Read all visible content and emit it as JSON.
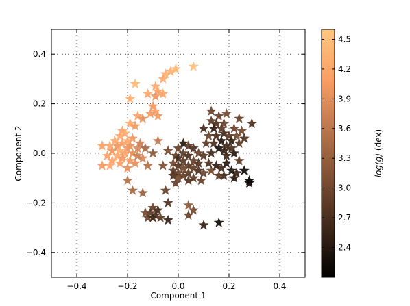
{
  "chart_data": {
    "type": "scatter",
    "title": "",
    "xlabel": "Component 1",
    "ylabel": "Component 2",
    "xlim": [
      -0.5,
      0.5
    ],
    "ylim": [
      -0.5,
      0.5
    ],
    "xticks": [
      "−0.4",
      "−0.2",
      "0.0",
      "0.2",
      "0.4"
    ],
    "xtick_values": [
      -0.4,
      -0.2,
      0.0,
      0.2,
      0.4
    ],
    "yticks": [
      "0.4",
      "0.2",
      "0.0",
      "−0.2",
      "−0.4"
    ],
    "ytick_values": [
      0.4,
      0.2,
      0.0,
      -0.2,
      -0.4
    ],
    "grid": true,
    "grid_style": "dotted",
    "marker": "star",
    "colorbar": {
      "colormap": "copper",
      "label_math": "log(g)",
      "label_text": " (dex)",
      "range": [
        2.1,
        4.6
      ],
      "ticks": [
        "4.5",
        "4.2",
        "3.9",
        "3.6",
        "3.3",
        "3.0",
        "2.7",
        "2.4"
      ],
      "tick_values": [
        4.5,
        4.2,
        3.9,
        3.6,
        3.3,
        3.0,
        2.7,
        2.4
      ]
    },
    "points": [
      {
        "x": 0.06,
        "y": 0.35,
        "c": 4.5
      },
      {
        "x": -0.01,
        "y": 0.34,
        "c": 4.4
      },
      {
        "x": -0.03,
        "y": 0.33,
        "c": 4.3
      },
      {
        "x": -0.05,
        "y": 0.32,
        "c": 4.3
      },
      {
        "x": -0.06,
        "y": 0.3,
        "c": 4.2
      },
      {
        "x": -0.17,
        "y": 0.28,
        "c": 4.4
      },
      {
        "x": -0.09,
        "y": 0.27,
        "c": 4.2
      },
      {
        "x": -0.08,
        "y": 0.25,
        "c": 4.1
      },
      {
        "x": -0.06,
        "y": 0.24,
        "c": 4.1
      },
      {
        "x": -0.12,
        "y": 0.24,
        "c": 4.2
      },
      {
        "x": -0.09,
        "y": 0.23,
        "c": 4.0
      },
      {
        "x": -0.19,
        "y": 0.22,
        "c": 4.3
      },
      {
        "x": -0.1,
        "y": 0.19,
        "c": 4.0
      },
      {
        "x": -0.09,
        "y": 0.17,
        "c": 4.1
      },
      {
        "x": -0.11,
        "y": 0.16,
        "c": 4.0
      },
      {
        "x": -0.16,
        "y": 0.15,
        "c": 4.1
      },
      {
        "x": -0.14,
        "y": 0.14,
        "c": 3.9
      },
      {
        "x": -0.08,
        "y": 0.15,
        "c": 4.0
      },
      {
        "x": -0.19,
        "y": 0.12,
        "c": 4.2
      },
      {
        "x": -0.17,
        "y": 0.11,
        "c": 4.0
      },
      {
        "x": -0.22,
        "y": 0.09,
        "c": 4.1
      },
      {
        "x": -0.21,
        "y": 0.08,
        "c": 4.3
      },
      {
        "x": -0.23,
        "y": 0.07,
        "c": 4.2
      },
      {
        "x": -0.18,
        "y": 0.06,
        "c": 4.0
      },
      {
        "x": -0.25,
        "y": 0.05,
        "c": 4.2
      },
      {
        "x": -0.2,
        "y": 0.05,
        "c": 4.2
      },
      {
        "x": -0.22,
        "y": 0.04,
        "c": 4.1
      },
      {
        "x": -0.24,
        "y": 0.03,
        "c": 4.0
      },
      {
        "x": -0.27,
        "y": 0.03,
        "c": 4.2
      },
      {
        "x": -0.3,
        "y": 0.03,
        "c": 4.1
      },
      {
        "x": -0.19,
        "y": 0.03,
        "c": 3.9
      },
      {
        "x": -0.15,
        "y": 0.04,
        "c": 3.7
      },
      {
        "x": -0.2,
        "y": 0.02,
        "c": 4.0
      },
      {
        "x": -0.23,
        "y": 0.01,
        "c": 4.3
      },
      {
        "x": -0.26,
        "y": 0.01,
        "c": 4.0
      },
      {
        "x": -0.16,
        "y": 0.02,
        "c": 3.8
      },
      {
        "x": -0.21,
        "y": 0.0,
        "c": 4.1
      },
      {
        "x": -0.18,
        "y": 0.0,
        "c": 3.9
      },
      {
        "x": -0.28,
        "y": -0.01,
        "c": 4.1
      },
      {
        "x": -0.24,
        "y": -0.01,
        "c": 4.2
      },
      {
        "x": -0.14,
        "y": -0.02,
        "c": 3.8
      },
      {
        "x": -0.22,
        "y": -0.02,
        "c": 4.0
      },
      {
        "x": -0.26,
        "y": -0.03,
        "c": 4.1
      },
      {
        "x": -0.19,
        "y": -0.03,
        "c": 4.0
      },
      {
        "x": -0.17,
        "y": -0.04,
        "c": 3.9
      },
      {
        "x": -0.23,
        "y": -0.04,
        "c": 4.1
      },
      {
        "x": -0.3,
        "y": -0.05,
        "c": 4.0
      },
      {
        "x": -0.27,
        "y": -0.05,
        "c": 4.2
      },
      {
        "x": -0.2,
        "y": -0.06,
        "c": 3.9
      },
      {
        "x": -0.08,
        "y": 0.05,
        "c": 3.6
      },
      {
        "x": -0.2,
        "y": -0.11,
        "c": 3.5
      },
      {
        "x": -0.18,
        "y": -0.15,
        "c": 3.4
      },
      {
        "x": -0.14,
        "y": -0.16,
        "c": 3.3
      },
      {
        "x": -0.05,
        "y": -0.15,
        "c": 2.9
      },
      {
        "x": -0.04,
        "y": -0.2,
        "c": 2.7
      },
      {
        "x": -0.1,
        "y": -0.22,
        "c": 2.9
      },
      {
        "x": -0.08,
        "y": -0.23,
        "c": 2.6
      },
      {
        "x": -0.11,
        "y": -0.24,
        "c": 2.8
      },
      {
        "x": -0.13,
        "y": -0.24,
        "c": 3.0
      },
      {
        "x": -0.09,
        "y": -0.25,
        "c": 2.7
      },
      {
        "x": -0.12,
        "y": -0.26,
        "c": 2.9
      },
      {
        "x": -0.1,
        "y": -0.26,
        "c": 2.6
      },
      {
        "x": -0.07,
        "y": -0.26,
        "c": 2.8
      },
      {
        "x": -0.04,
        "y": -0.27,
        "c": 2.5
      },
      {
        "x": 0.04,
        "y": -0.21,
        "c": 3.2
      },
      {
        "x": 0.06,
        "y": -0.23,
        "c": 3.0
      },
      {
        "x": 0.04,
        "y": -0.25,
        "c": 2.9
      },
      {
        "x": 0.1,
        "y": -0.29,
        "c": 2.5
      },
      {
        "x": 0.16,
        "y": -0.28,
        "c": 2.2
      },
      {
        "x": 0.13,
        "y": 0.17,
        "c": 2.9
      },
      {
        "x": 0.19,
        "y": 0.16,
        "c": 3.0
      },
      {
        "x": 0.16,
        "y": 0.15,
        "c": 2.9
      },
      {
        "x": 0.13,
        "y": 0.13,
        "c": 2.8
      },
      {
        "x": 0.15,
        "y": 0.12,
        "c": 2.7
      },
      {
        "x": 0.18,
        "y": 0.12,
        "c": 2.9
      },
      {
        "x": 0.24,
        "y": 0.14,
        "c": 2.9
      },
      {
        "x": 0.29,
        "y": 0.12,
        "c": 2.7
      },
      {
        "x": 0.1,
        "y": 0.1,
        "c": 2.6
      },
      {
        "x": 0.14,
        "y": 0.1,
        "c": 2.5
      },
      {
        "x": 0.17,
        "y": 0.1,
        "c": 2.8
      },
      {
        "x": 0.22,
        "y": 0.1,
        "c": 2.9
      },
      {
        "x": 0.25,
        "y": 0.09,
        "c": 3.0
      },
      {
        "x": 0.18,
        "y": 0.08,
        "c": 2.6
      },
      {
        "x": 0.12,
        "y": 0.07,
        "c": 2.9
      },
      {
        "x": 0.15,
        "y": 0.07,
        "c": 2.7
      },
      {
        "x": 0.2,
        "y": 0.07,
        "c": 2.8
      },
      {
        "x": 0.23,
        "y": 0.07,
        "c": 3.0
      },
      {
        "x": 0.26,
        "y": 0.06,
        "c": 2.7
      },
      {
        "x": 0.17,
        "y": 0.05,
        "c": 2.4
      },
      {
        "x": 0.21,
        "y": 0.05,
        "c": 2.5
      },
      {
        "x": 0.11,
        "y": 0.04,
        "c": 2.8
      },
      {
        "x": 0.14,
        "y": 0.04,
        "c": 2.7
      },
      {
        "x": 0.24,
        "y": 0.04,
        "c": 2.8
      },
      {
        "x": 0.19,
        "y": 0.03,
        "c": 2.6
      },
      {
        "x": 0.16,
        "y": 0.02,
        "c": 2.3
      },
      {
        "x": 0.21,
        "y": 0.02,
        "c": 2.7
      },
      {
        "x": 0.18,
        "y": 0.01,
        "c": 2.5
      },
      {
        "x": 0.13,
        "y": 0.0,
        "c": 2.6
      },
      {
        "x": 0.22,
        "y": 0.0,
        "c": 2.4
      },
      {
        "x": 0.02,
        "y": 0.04,
        "c": 2.4
      },
      {
        "x": 0.04,
        "y": 0.03,
        "c": 2.8
      },
      {
        "x": 0.0,
        "y": 0.02,
        "c": 2.9
      },
      {
        "x": 0.06,
        "y": 0.02,
        "c": 2.7
      },
      {
        "x": 0.02,
        "y": 0.0,
        "c": 2.8
      },
      {
        "x": 0.08,
        "y": 0.0,
        "c": 2.9
      },
      {
        "x": -0.01,
        "y": -0.01,
        "c": 2.9
      },
      {
        "x": 0.04,
        "y": -0.01,
        "c": 2.7
      },
      {
        "x": 0.1,
        "y": -0.01,
        "c": 2.8
      },
      {
        "x": 0.0,
        "y": -0.02,
        "c": 2.6
      },
      {
        "x": 0.06,
        "y": -0.03,
        "c": 2.9
      },
      {
        "x": 0.02,
        "y": -0.03,
        "c": 2.8
      },
      {
        "x": 0.08,
        "y": -0.04,
        "c": 2.7
      },
      {
        "x": -0.02,
        "y": -0.04,
        "c": 3.0
      },
      {
        "x": 0.04,
        "y": -0.05,
        "c": 2.8
      },
      {
        "x": 0.0,
        "y": -0.05,
        "c": 2.7
      },
      {
        "x": 0.06,
        "y": -0.06,
        "c": 2.9
      },
      {
        "x": 0.02,
        "y": -0.06,
        "c": 3.0
      },
      {
        "x": -0.02,
        "y": -0.07,
        "c": 2.8
      },
      {
        "x": 0.08,
        "y": -0.07,
        "c": 2.7
      },
      {
        "x": 0.0,
        "y": -0.08,
        "c": 2.9
      },
      {
        "x": 0.04,
        "y": -0.08,
        "c": 2.8
      },
      {
        "x": 0.1,
        "y": -0.08,
        "c": 2.9
      },
      {
        "x": -0.02,
        "y": -0.09,
        "c": 2.7
      },
      {
        "x": 0.02,
        "y": -0.09,
        "c": 2.9
      },
      {
        "x": 0.06,
        "y": -0.1,
        "c": 2.8
      },
      {
        "x": 0.0,
        "y": -0.1,
        "c": 3.0
      },
      {
        "x": 0.04,
        "y": -0.11,
        "c": 2.7
      },
      {
        "x": -0.01,
        "y": -0.12,
        "c": 2.9
      },
      {
        "x": 0.13,
        "y": -0.07,
        "c": 3.0
      },
      {
        "x": 0.09,
        "y": -0.11,
        "c": 2.9
      },
      {
        "x": 0.12,
        "y": -0.04,
        "c": 2.7
      },
      {
        "x": 0.15,
        "y": -0.05,
        "c": 2.5
      },
      {
        "x": 0.17,
        "y": -0.06,
        "c": 2.6
      },
      {
        "x": 0.19,
        "y": -0.04,
        "c": 2.4
      },
      {
        "x": 0.21,
        "y": -0.07,
        "c": 2.3
      },
      {
        "x": 0.23,
        "y": -0.08,
        "c": 2.5
      },
      {
        "x": 0.18,
        "y": -0.09,
        "c": 2.6
      },
      {
        "x": 0.22,
        "y": -0.1,
        "c": 2.4
      },
      {
        "x": 0.26,
        "y": -0.07,
        "c": 2.2
      },
      {
        "x": 0.28,
        "y": -0.11,
        "c": 2.1
      },
      {
        "x": 0.28,
        "y": -0.12,
        "c": 2.2
      },
      {
        "x": 0.16,
        "y": -0.09,
        "c": 2.8
      },
      {
        "x": 0.19,
        "y": -0.01,
        "c": 2.6
      },
      {
        "x": 0.24,
        "y": -0.03,
        "c": 2.8
      },
      {
        "x": -0.06,
        "y": -0.05,
        "c": 3.1
      },
      {
        "x": -0.04,
        "y": 0.01,
        "c": 3.0
      },
      {
        "x": -0.1,
        "y": 0.0,
        "c": 3.2
      },
      {
        "x": -0.13,
        "y": 0.02,
        "c": 3.4
      },
      {
        "x": -0.12,
        "y": -0.05,
        "c": 3.5
      },
      {
        "x": -0.16,
        "y": -0.01,
        "c": 3.7
      }
    ]
  }
}
